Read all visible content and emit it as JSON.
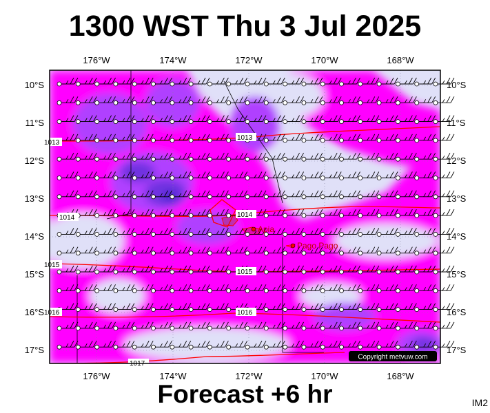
{
  "title": "1300 WST Thu 3 Jul 2025",
  "footer": "Forecast +6 hr",
  "product_code": "IM2",
  "copyright": "Copyright metvuw.com",
  "colors": {
    "ocean": "#e0e0f8",
    "rain_light": "#ff00ff",
    "rain_mid": "#b040ff",
    "rain_heavy": "#7030e0",
    "rain_extreme": "#4020d0",
    "isobar": "#ff0000",
    "land": "#ff0000"
  },
  "map": {
    "lon_labels": [
      "176°W",
      "174°W",
      "172°W",
      "170°W",
      "168°W"
    ],
    "lat_labels": [
      "10°S",
      "11°S",
      "12°S",
      "13°S",
      "14°S",
      "15°S",
      "16°S",
      "17°S"
    ],
    "isobar_labels": [
      "1013",
      "1014",
      "1014",
      "1015",
      "1015",
      "1016",
      "1016",
      "1017",
      "1013"
    ],
    "places": [
      {
        "name": "Apia",
        "lon": -171.76,
        "lat": -13.83
      },
      {
        "name": "Pago Pago",
        "lon": -170.7,
        "lat": -14.28
      }
    ]
  }
}
